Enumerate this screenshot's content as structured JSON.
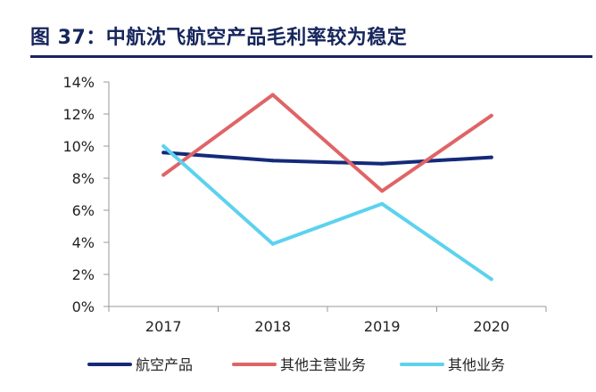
{
  "figure": {
    "title": "图 37：中航沈飞航空产品毛利率较为稳定"
  },
  "chart_data": {
    "type": "line",
    "categories": [
      "2017",
      "2018",
      "2019",
      "2020"
    ],
    "ylim": [
      0,
      14
    ],
    "yticks": [
      0,
      2,
      4,
      6,
      8,
      10,
      12,
      14
    ],
    "ytick_labels": [
      "0%",
      "2%",
      "4%",
      "6%",
      "8%",
      "10%",
      "12%",
      "14%"
    ],
    "grid": false,
    "legend_position": "bottom",
    "series": [
      {
        "name": "航空产品",
        "color": "#142a79",
        "values": [
          9.6,
          9.1,
          8.9,
          9.3
        ]
      },
      {
        "name": "其他主营业务",
        "color": "#e06466",
        "values": [
          8.2,
          13.2,
          7.2,
          11.9
        ]
      },
      {
        "name": "其他业务",
        "color": "#5cd2ee",
        "values": [
          10.0,
          3.9,
          6.4,
          1.7
        ]
      }
    ]
  }
}
